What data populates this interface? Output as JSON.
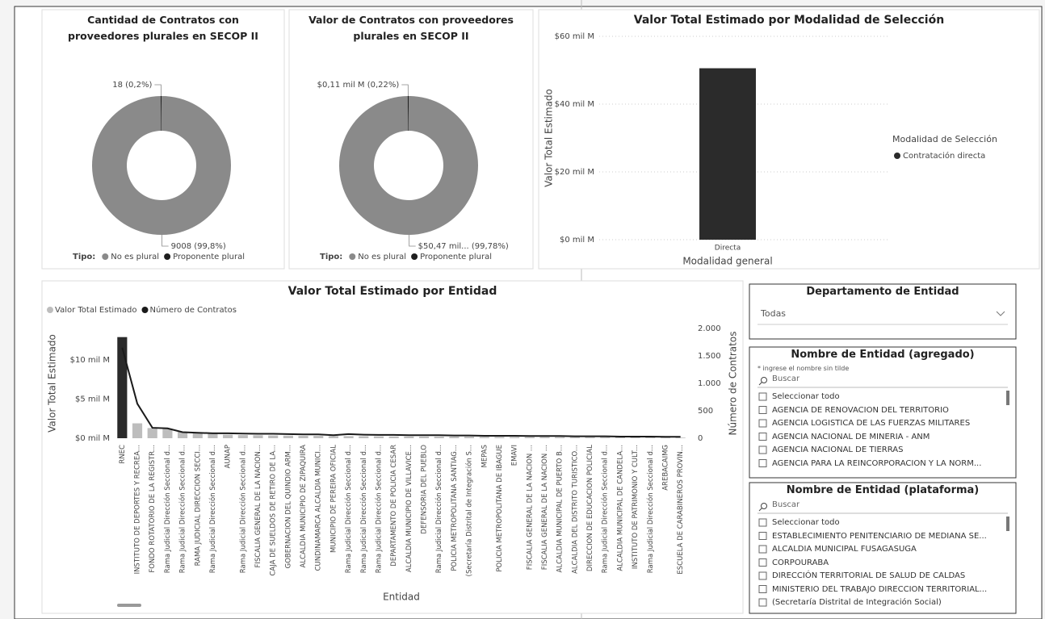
{
  "chart_data": [
    {
      "type": "pie",
      "title": "Cantidad de Contratos con proveedores plurales en SECOP II",
      "hole": 0.5,
      "categories": [
        "No es plural",
        "Proponente plural"
      ],
      "values": [
        9008,
        18
      ],
      "value_labels": [
        "9008 (99,8%)",
        "18 (0,2%)"
      ],
      "colors": [
        "#8a8a8a",
        "#1e1e1e"
      ],
      "legend_title": "Tipo:",
      "legend": "bottom"
    },
    {
      "type": "pie",
      "title": "Valor de Contratos con proveedores plurales en SECOP II",
      "hole": 0.5,
      "categories": [
        "No es plural",
        "Proponente plural"
      ],
      "values": [
        50.47,
        0.11
      ],
      "value_labels": [
        "$50,47 mil... (99,78%)",
        "$0,11 mil M (0,22%)"
      ],
      "colors": [
        "#8a8a8a",
        "#1e1e1e"
      ],
      "legend_title": "Tipo:",
      "legend": "bottom"
    },
    {
      "type": "bar",
      "title": "Valor Total Estimado por Modalidad de Selección",
      "categories": [
        "Directa"
      ],
      "series": [
        {
          "name": "Contratación directa",
          "color": "#2b2b2b",
          "values": [
            50.58
          ]
        }
      ],
      "ylim": [
        0,
        60
      ],
      "yticks": [
        {
          "value": 0,
          "label": "$0 mil M"
        },
        {
          "value": 20,
          "label": "$20 mil M"
        },
        {
          "value": 40,
          "label": "$40 mil M"
        },
        {
          "value": 60,
          "label": "$60 mil M"
        }
      ],
      "grid": true,
      "x_label": "Modalidad general",
      "y_label": "Valor Total Estimado",
      "legend_title": "Modalidad de Selección",
      "legend": "right"
    },
    {
      "type": "bar",
      "title": "Valor Total Estimado por Entidad",
      "categories": [
        "RNEC",
        "INSTITUTO DE DEPORTES Y RECREA...",
        "FONDO ROTATORIO DE LA REGISTR...",
        "Rama Judicial Dirección Seccional d...",
        "Rama Judicial Dirección Seccional d...",
        "RAMA JUDICIAL DIRECCION SECCI...",
        "Rama Judicial Dirección Seccional d...",
        "AUNAP",
        "Rama Judicial Dirección Seccional d...",
        "FISCALIA GENERAL DE LA NACION...",
        "CAJA DE SUELDOS DE RETIRO DE LA...",
        "GOBERNACION DEL QUINDIO ARM...",
        "ALCALDIA MUNICIPIO DE ZIPAQUIRA",
        "CUNDINAMARCA ALCALDIA MUNICI...",
        "MUNICIPIO DE PEREIRA OFICIAL",
        "Rama Judicial Dirección Seccional d...",
        "Rama Judicial Dirección Seccional d...",
        "Rama Judicial Dirección Seccional d...",
        "DEPARTAMENTO DE POLICIA CESAR",
        "ALCALDIA MUNICIPIO DE VILLAVICE...",
        "DEFENSORIA DEL PUEBLO",
        "Rama Judicial Dirección Seccional d...",
        "POLICIA METROPOLITANA SANTIAG...",
        "(Secretaría Distrital de Integración S...",
        "MEPAS",
        "POLICIA METROPOLITANA DE IBAGUE",
        "EMAVI",
        "FISCALIA GENERAL DE LA NACION ...",
        "FISCALIA GENERAL DE LA NACION ...",
        "ALCALDIA MUNICIPAL DE PUERTO B...",
        "ALCALDIA DEL DISTRITO TURISTICO...",
        "DIRECCION DE EDUCACION POLICIAL",
        "Rama Judicial Dirección Seccional d...",
        "ALCALDIA MUNICIPAL DE CANDELA...",
        "INSTITUTO DE PATRIMONIO Y CULT...",
        "Rama Judicial Dirección Seccional d...",
        "AREBACAIMG",
        "ESCUELA DE CARABINEROS PROVIN..."
      ],
      "series": [
        {
          "name": "Valor Total Estimado",
          "color": "#bdbdbd",
          "colors": [
            "#2a2a2a",
            "#bdbdbd",
            "#bdbdbd",
            "#bdbdbd",
            "#bdbdbd",
            "#bdbdbd",
            "#bdbdbd",
            "#bdbdbd",
            "#bdbdbd",
            "#bdbdbd",
            "#bdbdbd",
            "#bdbdbd",
            "#bdbdbd",
            "#bdbdbd",
            "#bdbdbd",
            "#bdbdbd",
            "#bdbdbd",
            "#bdbdbd",
            "#bdbdbd",
            "#bdbdbd",
            "#bdbdbd",
            "#bdbdbd",
            "#bdbdbd",
            "#bdbdbd",
            "#bdbdbd",
            "#bdbdbd",
            "#bdbdbd",
            "#bdbdbd",
            "#bdbdbd",
            "#bdbdbd",
            "#bdbdbd",
            "#bdbdbd",
            "#bdbdbd",
            "#bdbdbd",
            "#bdbdbd",
            "#bdbdbd",
            "#bdbdbd",
            "#bdbdbd"
          ],
          "values": [
            12.9,
            1.9,
            1.3,
            1.2,
            0.8,
            0.7,
            0.6,
            0.45,
            0.4,
            0.38,
            0.35,
            0.33,
            0.3,
            0.3,
            0.28,
            0.27,
            0.25,
            0.24,
            0.23,
            0.22,
            0.21,
            0.2,
            0.2,
            0.19,
            0.18,
            0.17,
            0.16,
            0.15,
            0.15,
            0.14,
            0.13,
            0.12,
            0.12,
            0.11,
            0.1,
            0.1,
            0.09,
            0.08
          ]
        },
        {
          "name": "Número de Contratos",
          "color": "#1a1a1a",
          "type": "line",
          "axis": "y2",
          "values": [
            1650,
            630,
            190,
            180,
            110,
            100,
            90,
            90,
            85,
            80,
            80,
            75,
            70,
            70,
            55,
            75,
            65,
            60,
            60,
            55,
            55,
            55,
            50,
            50,
            45,
            45,
            45,
            40,
            40,
            40,
            35,
            35,
            35,
            30,
            30,
            30,
            25,
            25
          ]
        }
      ],
      "ylim": [
        0,
        14
      ],
      "yticks": [
        {
          "value": 0,
          "label": "$0 mil M"
        },
        {
          "value": 5,
          "label": "$5 mil M"
        },
        {
          "value": 10,
          "label": "$10 mil M"
        }
      ],
      "y2lim": [
        0,
        2000
      ],
      "y2ticks": [
        0,
        500,
        {
          "value": 1000,
          "label": "1.000"
        },
        {
          "value": 1500,
          "label": "1.500"
        },
        {
          "value": 2000,
          "label": "2.000"
        }
      ],
      "grid": false,
      "x_label": "Entidad",
      "y_label": "Valor Total Estimado",
      "y2_label": "Número de Contratos",
      "legend": "top-left"
    }
  ],
  "slicers": [
    {
      "title": "Departamento de Entidad",
      "value": "Todas"
    },
    {
      "title": "Nombre de Entidad (agregado)",
      "hint": "* ingrese el nombre sin tilde",
      "search": "Buscar",
      "items": [
        "Seleccionar todo",
        "AGENCIA DE RENOVACION DEL TERRITORIO",
        "AGENCIA LOGISTICA DE LAS FUERZAS MILITARES",
        "AGENCIA NACIONAL DE MINERIA - ANM",
        "AGENCIA NACIONAL DE TIERRAS",
        "AGENCIA PARA LA REINCORPORACION Y LA NORM..."
      ]
    },
    {
      "title": "Nombre de Entidad (plataforma)",
      "search": "Buscar",
      "items": [
        "Seleccionar todo",
        "ESTABLECIMIENTO PENITENCIARIO DE MEDIANA SE...",
        "ALCALDIA MUNICIPAL FUSAGASUGA",
        "CORPOURABA",
        "DIRECCIÓN TERRITORIAL DE SALUD DE CALDAS",
        "MINISTERIO DEL TRABAJO DIRECCION TERRITORIAL...",
        "(Secretaría Distrital de Integración Social)"
      ]
    }
  ]
}
